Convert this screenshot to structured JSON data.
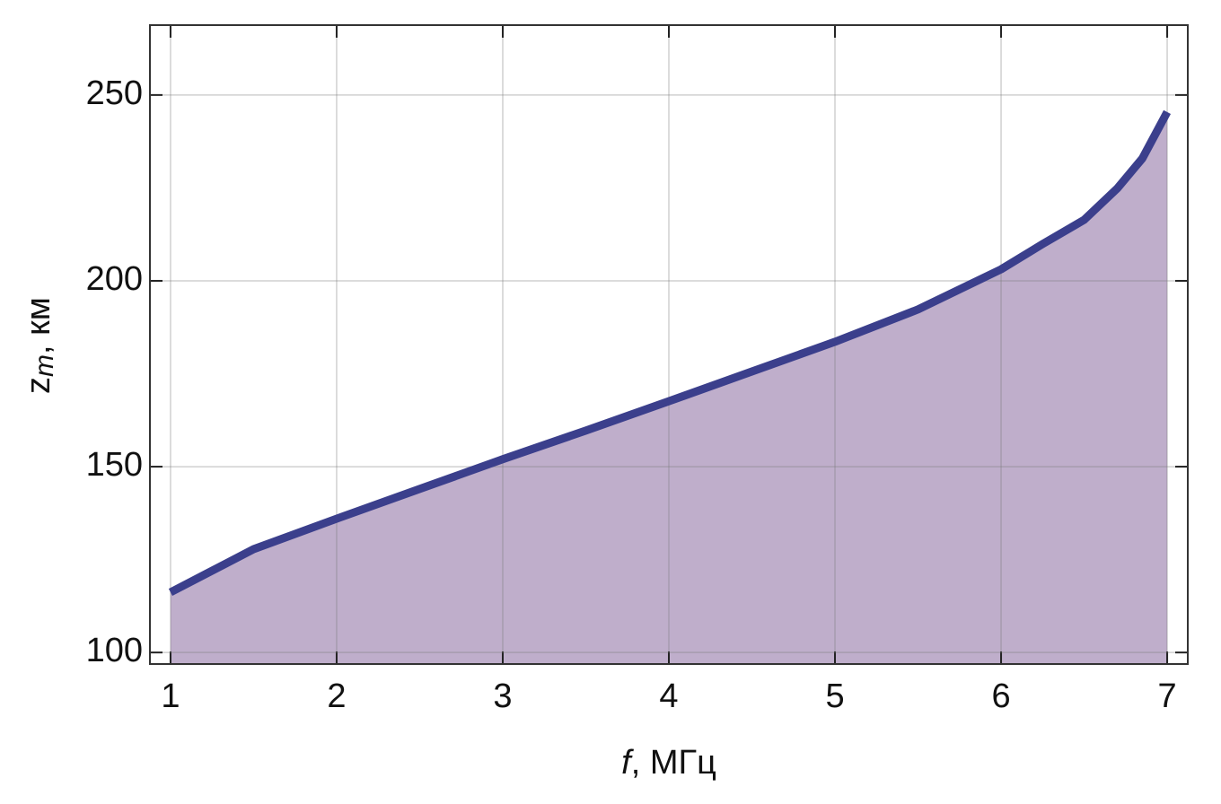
{
  "chart_data": {
    "type": "area",
    "xlabel": [
      "f",
      ", МГц"
    ],
    "ylabel": [
      "z",
      "m",
      ", км"
    ],
    "x": [
      1,
      1.5,
      2,
      2.5,
      3,
      3.5,
      4,
      4.5,
      5,
      5.5,
      6,
      6.25,
      6.5,
      6.7,
      6.85,
      7
    ],
    "series": [
      {
        "color": "#3b3f8c",
        "fill": "#bfaecb",
        "values": [
          116.2,
          127.8,
          136,
          144,
          152,
          159.7,
          167.6,
          175.6,
          183.6,
          192.3,
          203.1,
          209.9,
          216.4,
          224.9,
          232.9,
          245.4
        ]
      }
    ],
    "xlim": [
      0.876,
      7.124
    ],
    "ylim": [
      96.9,
      268.8
    ],
    "xticks": [
      1,
      2,
      3,
      4,
      5,
      6,
      7
    ],
    "yticks": [
      100,
      150,
      200,
      250
    ],
    "grid": true
  }
}
